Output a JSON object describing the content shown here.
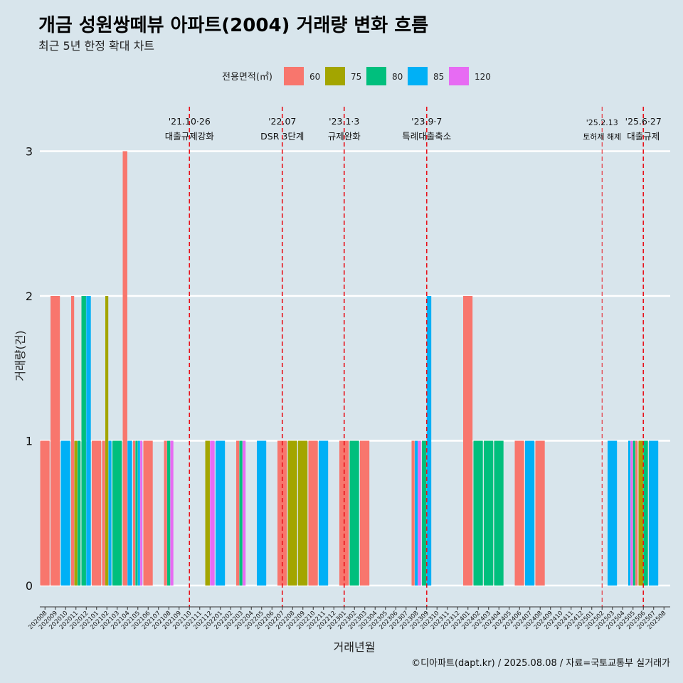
{
  "chart_data": {
    "type": "bar",
    "title": "개금 성원쌍떼뷰 아파트(2004) 거래량 변화 흐름",
    "subtitle": "최근 5년 한정 확대 차트",
    "xlabel": "거래년월",
    "ylabel": "거래량(건)",
    "ylim": [
      0,
      3
    ],
    "yticks": [
      "0",
      "1",
      "2",
      "3"
    ],
    "grid": true,
    "legend": {
      "title": "전용면적(㎡)",
      "position": "top",
      "items": [
        {
          "label": "60",
          "color": "#F8766D"
        },
        {
          "label": "75",
          "color": "#A3A500"
        },
        {
          "label": "80",
          "color": "#00BF7D"
        },
        {
          "label": "85",
          "color": "#00B0F6"
        },
        {
          "label": "120",
          "color": "#E76BF3"
        }
      ]
    },
    "categories": [
      "202008",
      "202009",
      "202010",
      "202011",
      "202012",
      "202101",
      "202102",
      "202103",
      "202104",
      "202105",
      "202106",
      "202107",
      "202108",
      "202109",
      "202110",
      "202111",
      "202112",
      "202201",
      "202202",
      "202203",
      "202204",
      "202205",
      "202206",
      "202207",
      "202208",
      "202209",
      "202210",
      "202211",
      "202212",
      "202301",
      "202302",
      "202303",
      "202304",
      "202305",
      "202306",
      "202307",
      "202308",
      "202309",
      "202310",
      "202311",
      "202312",
      "202401",
      "202402",
      "202403",
      "202404",
      "202405",
      "202406",
      "202407",
      "202408",
      "202409",
      "202410",
      "202411",
      "202412",
      "202501",
      "202502",
      "202503",
      "202504",
      "202505",
      "202506",
      "202507",
      "202508"
    ],
    "groups": [
      {
        "month": "202008",
        "bars": [
          {
            "area": "60",
            "count": 1
          }
        ]
      },
      {
        "month": "202009",
        "bars": [
          {
            "area": "60",
            "count": 2
          }
        ]
      },
      {
        "month": "202010",
        "bars": [
          {
            "area": "85",
            "count": 1
          }
        ]
      },
      {
        "month": "202011",
        "bars": [
          {
            "area": "60",
            "count": 2
          },
          {
            "area": "75",
            "count": 1
          },
          {
            "area": "80",
            "count": 1
          }
        ]
      },
      {
        "month": "202012",
        "bars": [
          {
            "area": "80",
            "count": 2
          },
          {
            "area": "85",
            "count": 2
          }
        ]
      },
      {
        "month": "202101",
        "bars": [
          {
            "area": "60",
            "count": 1
          }
        ]
      },
      {
        "month": "202102",
        "bars": [
          {
            "area": "60",
            "count": 1
          },
          {
            "area": "75",
            "count": 2
          },
          {
            "area": "85",
            "count": 1
          }
        ]
      },
      {
        "month": "202103",
        "bars": [
          {
            "area": "80",
            "count": 1
          }
        ]
      },
      {
        "month": "202104",
        "bars": [
          {
            "area": "60",
            "count": 3
          },
          {
            "area": "85",
            "count": 1
          }
        ]
      },
      {
        "month": "202105",
        "bars": [
          {
            "area": "60",
            "count": 1
          },
          {
            "area": "80",
            "count": 1
          },
          {
            "area": "85",
            "count": 1
          },
          {
            "area": "120",
            "count": 1
          }
        ]
      },
      {
        "month": "202106",
        "bars": [
          {
            "area": "60",
            "count": 1
          }
        ]
      },
      {
        "month": "202108",
        "bars": [
          {
            "area": "60",
            "count": 1
          },
          {
            "area": "80",
            "count": 1
          },
          {
            "area": "120",
            "count": 1
          }
        ]
      },
      {
        "month": "202112",
        "bars": [
          {
            "area": "75",
            "count": 1
          },
          {
            "area": "120",
            "count": 1
          }
        ]
      },
      {
        "month": "202201",
        "bars": [
          {
            "area": "85",
            "count": 1
          }
        ]
      },
      {
        "month": "202203",
        "bars": [
          {
            "area": "60",
            "count": 1
          },
          {
            "area": "80",
            "count": 1
          },
          {
            "area": "120",
            "count": 1
          }
        ]
      },
      {
        "month": "202205",
        "bars": [
          {
            "area": "85",
            "count": 1
          }
        ]
      },
      {
        "month": "202207",
        "bars": [
          {
            "area": "60",
            "count": 1
          }
        ]
      },
      {
        "month": "202208",
        "bars": [
          {
            "area": "75",
            "count": 1
          }
        ]
      },
      {
        "month": "202209",
        "bars": [
          {
            "area": "75",
            "count": 1
          }
        ]
      },
      {
        "month": "202210",
        "bars": [
          {
            "area": "60",
            "count": 1
          }
        ]
      },
      {
        "month": "202211",
        "bars": [
          {
            "area": "85",
            "count": 1
          }
        ]
      },
      {
        "month": "202301",
        "bars": [
          {
            "area": "60",
            "count": 1
          }
        ]
      },
      {
        "month": "202302",
        "bars": [
          {
            "area": "80",
            "count": 1
          }
        ]
      },
      {
        "month": "202303",
        "bars": [
          {
            "area": "60",
            "count": 1
          }
        ]
      },
      {
        "month": "202308",
        "bars": [
          {
            "area": "60",
            "count": 1
          },
          {
            "area": "85",
            "count": 1
          },
          {
            "area": "120",
            "count": 1
          }
        ]
      },
      {
        "month": "202309",
        "bars": [
          {
            "area": "80",
            "count": 1
          },
          {
            "area": "85",
            "count": 2
          }
        ]
      },
      {
        "month": "202401",
        "bars": [
          {
            "area": "60",
            "count": 2
          }
        ]
      },
      {
        "month": "202402",
        "bars": [
          {
            "area": "80",
            "count": 1
          }
        ]
      },
      {
        "month": "202403",
        "bars": [
          {
            "area": "80",
            "count": 1
          }
        ]
      },
      {
        "month": "202404",
        "bars": [
          {
            "area": "80",
            "count": 1
          }
        ]
      },
      {
        "month": "202406",
        "bars": [
          {
            "area": "60",
            "count": 1
          }
        ]
      },
      {
        "month": "202407",
        "bars": [
          {
            "area": "85",
            "count": 1
          }
        ]
      },
      {
        "month": "202408",
        "bars": [
          {
            "area": "60",
            "count": 1
          }
        ]
      },
      {
        "month": "202503",
        "bars": [
          {
            "area": "85",
            "count": 1
          }
        ]
      },
      {
        "month": "202505",
        "bars": [
          {
            "area": "85",
            "count": 1
          },
          {
            "area": "120",
            "count": 1
          },
          {
            "area": "80",
            "count": 1
          },
          {
            "area": "60",
            "count": 1
          }
        ]
      },
      {
        "month": "202506",
        "bars": [
          {
            "area": "75",
            "count": 1
          },
          {
            "area": "80",
            "count": 1
          }
        ]
      },
      {
        "month": "202507",
        "bars": [
          {
            "area": "85",
            "count": 1
          }
        ]
      }
    ],
    "events": [
      {
        "date": "'21.10·26",
        "label": "대출규제강화",
        "month": "202110",
        "small": false
      },
      {
        "date": "'22.07",
        "label": "DSR 3단계",
        "month": "202207",
        "small": false
      },
      {
        "date": "'23.1·3",
        "label": "규제완화",
        "month": "202301",
        "small": false
      },
      {
        "date": "'23.9·7",
        "label": "특례대출축소",
        "month": "202309",
        "small": false
      },
      {
        "date": "'25.2.13",
        "label": "토허제 해제",
        "month": "202502",
        "small": true
      },
      {
        "date": "'25.6·27",
        "label": "대출규제",
        "month": "202506",
        "small": false
      }
    ]
  },
  "caption": "©디아파트(dapt.kr) / 2025.08.08 / 자료=국토교통부 실거래가"
}
